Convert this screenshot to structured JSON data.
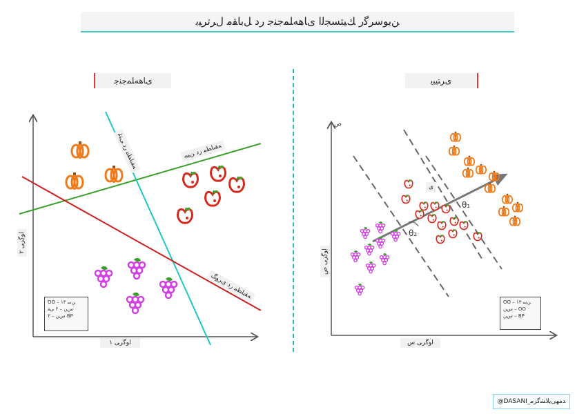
{
  "title": "ﻦﻳﻮﺳﺮﮔﺭ ﻚﻴﺘﺴﺠﻟﺍ ﯼﺎﻫﻪﻠﻤﺟﻨﺟ ﺭﺩ ﻞﺑﺎﻘﻣ ﻝﺮﺗﺮﯿﺑ",
  "left_panel": {
    "label": "ﯼﺎﻫﻪﻠﻤﺟﻨﺟ",
    "x_axis_label": "ﺍﻮﮔﺮﯽ ۱",
    "y_axis_label": "ﺍﻮﮔﺮﯽ ۲",
    "line_labels": {
      "green": "ﻪﻘﺑﺎﻄﻣ ﺭﺩ ﻦﯿﯿﺑ",
      "cyan": "ﻪﻘﺑﺎﻄﻣ ﺭﺩ ﯽﺘﻏ",
      "red": "ﻪﻘﺑﺎﻄﻣ ﺭﺩ ﯼﺮﻭﮓ"
    },
    "legend": [
      "OO – ۱۳ ﻦﺳ",
      "ﺱﻦ – ۲ ﯽﻘ",
      "ﺱﻦ – ۳ BP"
    ]
  },
  "right_panel": {
    "label": "ﯼﺮﺘﯿﺒﯾ",
    "x_axis_label": "ﺍﻮﮔﺮﯽ ﺱ",
    "y_axis_label": "ﺍﻮﮔﺮﯽ ﺹ",
    "y_axis_tick": "ﺹ",
    "theta_1": "θ₁",
    "theta_2": "θ₂",
    "margin_tag": "ﯼ",
    "legend": [
      "OO – ۱۳ ﻦﺳ",
      "ﺱﻦ – OO",
      "ﺱﻦ – BP"
    ]
  },
  "credit": "@DASANI_ﺪﻣﻬﯽﯾﻼﺸﮔﺰﻣ",
  "colors": {
    "teal_accent": "#3ec7c2",
    "green_line": "#3aa02a",
    "cyan_line": "#1ec8c0",
    "red_line": "#cc2020",
    "pumpkin": "#f07a1a",
    "apple": "#d8281e",
    "grape": "#d040e0"
  },
  "icons": [
    "pumpkin-icon",
    "apple-icon",
    "grape-icon"
  ]
}
